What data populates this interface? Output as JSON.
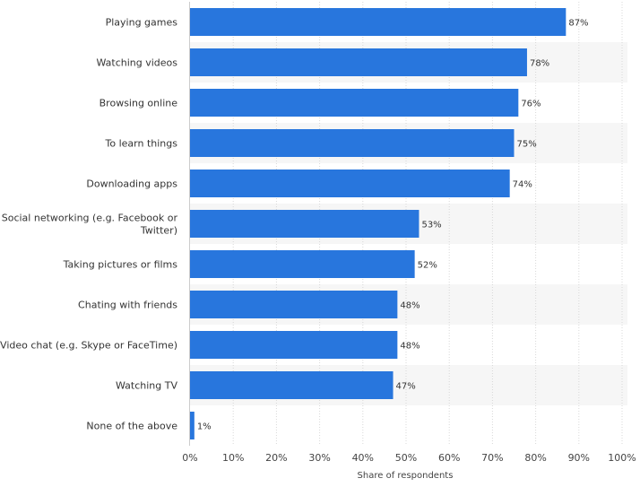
{
  "chart_data": {
    "type": "bar",
    "orientation": "horizontal",
    "categories": [
      "Playing games",
      "Watching videos",
      "Browsing online",
      "To learn things",
      "Downloading apps",
      "Social networking (e.g. Facebook or Twitter)",
      "Taking pictures or films",
      "Chating with friends",
      "Video chat (e.g. Skype or FaceTime)",
      "Watching TV",
      "None of the above"
    ],
    "category_label_lines": [
      [
        "Playing games"
      ],
      [
        "Watching videos"
      ],
      [
        "Browsing online"
      ],
      [
        "To learn things"
      ],
      [
        "Downloading apps"
      ],
      [
        "Social networking (e.g. Facebook or",
        "Twitter)"
      ],
      [
        "Taking pictures or films"
      ],
      [
        "Chating with friends"
      ],
      [
        "Video chat (e.g. Skype or FaceTime)"
      ],
      [
        "Watching TV"
      ],
      [
        "None of the above"
      ]
    ],
    "values": [
      87,
      78,
      76,
      75,
      74,
      53,
      52,
      48,
      48,
      47,
      1
    ],
    "value_labels": [
      "87%",
      "78%",
      "76%",
      "75%",
      "74%",
      "53%",
      "52%",
      "48%",
      "48%",
      "47%",
      "1%"
    ],
    "xlim": [
      0,
      100
    ],
    "x_ticks": [
      0,
      10,
      20,
      30,
      40,
      50,
      60,
      70,
      80,
      90,
      100
    ],
    "x_tick_labels": [
      "0%",
      "10%",
      "20%",
      "30%",
      "40%",
      "50%",
      "60%",
      "70%",
      "80%",
      "90%",
      "100%"
    ],
    "xlabel": "Share of respondents",
    "title": "",
    "grid": "vertical-dashed",
    "legend": "none"
  },
  "colors": {
    "bar": "#2876dd",
    "band": "#f6f6f6",
    "grid": "#d8d8d8",
    "axis": "#cccccc",
    "text": "#333333",
    "tick_text": "#444444"
  }
}
